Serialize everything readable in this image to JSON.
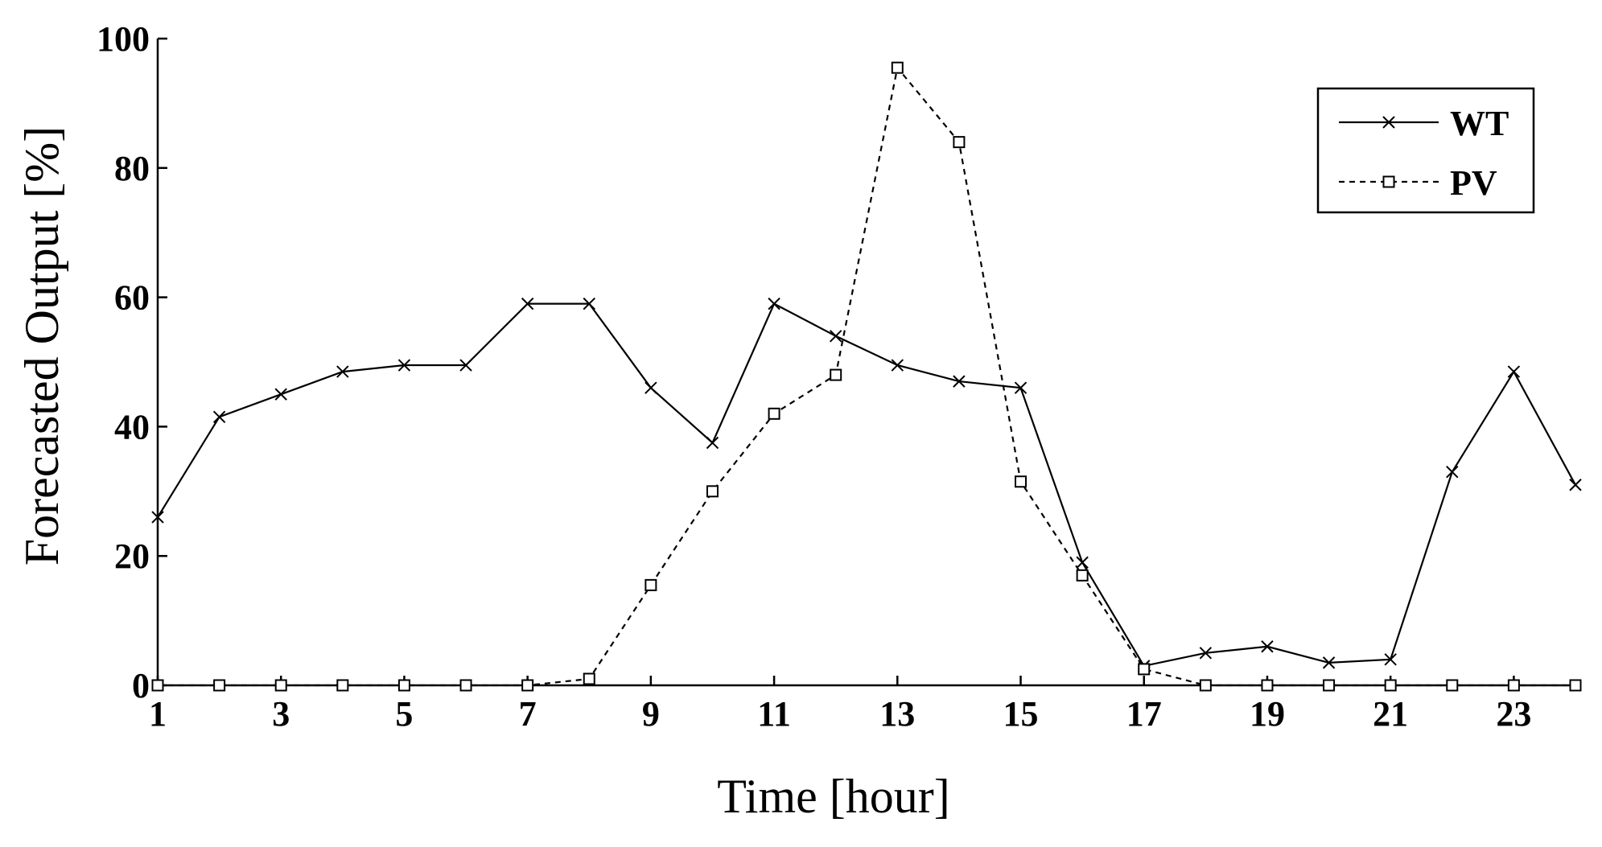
{
  "chart_data": {
    "type": "line",
    "xlabel": "Time [hour]",
    "ylabel": "Forecasted Output [%]",
    "xlim": [
      1,
      24
    ],
    "ylim": [
      0,
      100
    ],
    "x_ticks": [
      1,
      3,
      5,
      7,
      9,
      11,
      13,
      15,
      17,
      19,
      21,
      23
    ],
    "x_tick_labels": [
      "1",
      "3",
      "5",
      "7",
      "9",
      "11",
      "13",
      "15",
      "17",
      "19",
      "21",
      "23"
    ],
    "y_ticks": [
      0,
      20,
      40,
      60,
      80,
      100
    ],
    "y_tick_labels": [
      "0",
      "20",
      "40",
      "60",
      "80",
      "100"
    ],
    "grid": false,
    "legend_position": "top-right",
    "x": [
      1,
      2,
      3,
      4,
      5,
      6,
      7,
      8,
      9,
      10,
      11,
      12,
      13,
      14,
      15,
      16,
      17,
      18,
      19,
      20,
      21,
      22,
      23,
      24
    ],
    "series": [
      {
        "name": "WT",
        "line_style": "solid",
        "marker": "x",
        "color": "#000000",
        "values": [
          26,
          41.5,
          45,
          48.5,
          49.5,
          49.5,
          59,
          59,
          46,
          37.5,
          59,
          54,
          49.5,
          47,
          46,
          19,
          3,
          5,
          6,
          3.5,
          4,
          33,
          48.5,
          31
        ]
      },
      {
        "name": "PV",
        "line_style": "dashed",
        "marker": "square",
        "color": "#000000",
        "values": [
          0,
          0,
          0,
          0,
          0,
          0,
          0,
          1,
          15.5,
          30,
          42,
          48,
          95.5,
          84,
          31.5,
          17,
          2.5,
          0,
          0,
          0,
          0,
          0,
          0,
          0
        ]
      }
    ]
  }
}
